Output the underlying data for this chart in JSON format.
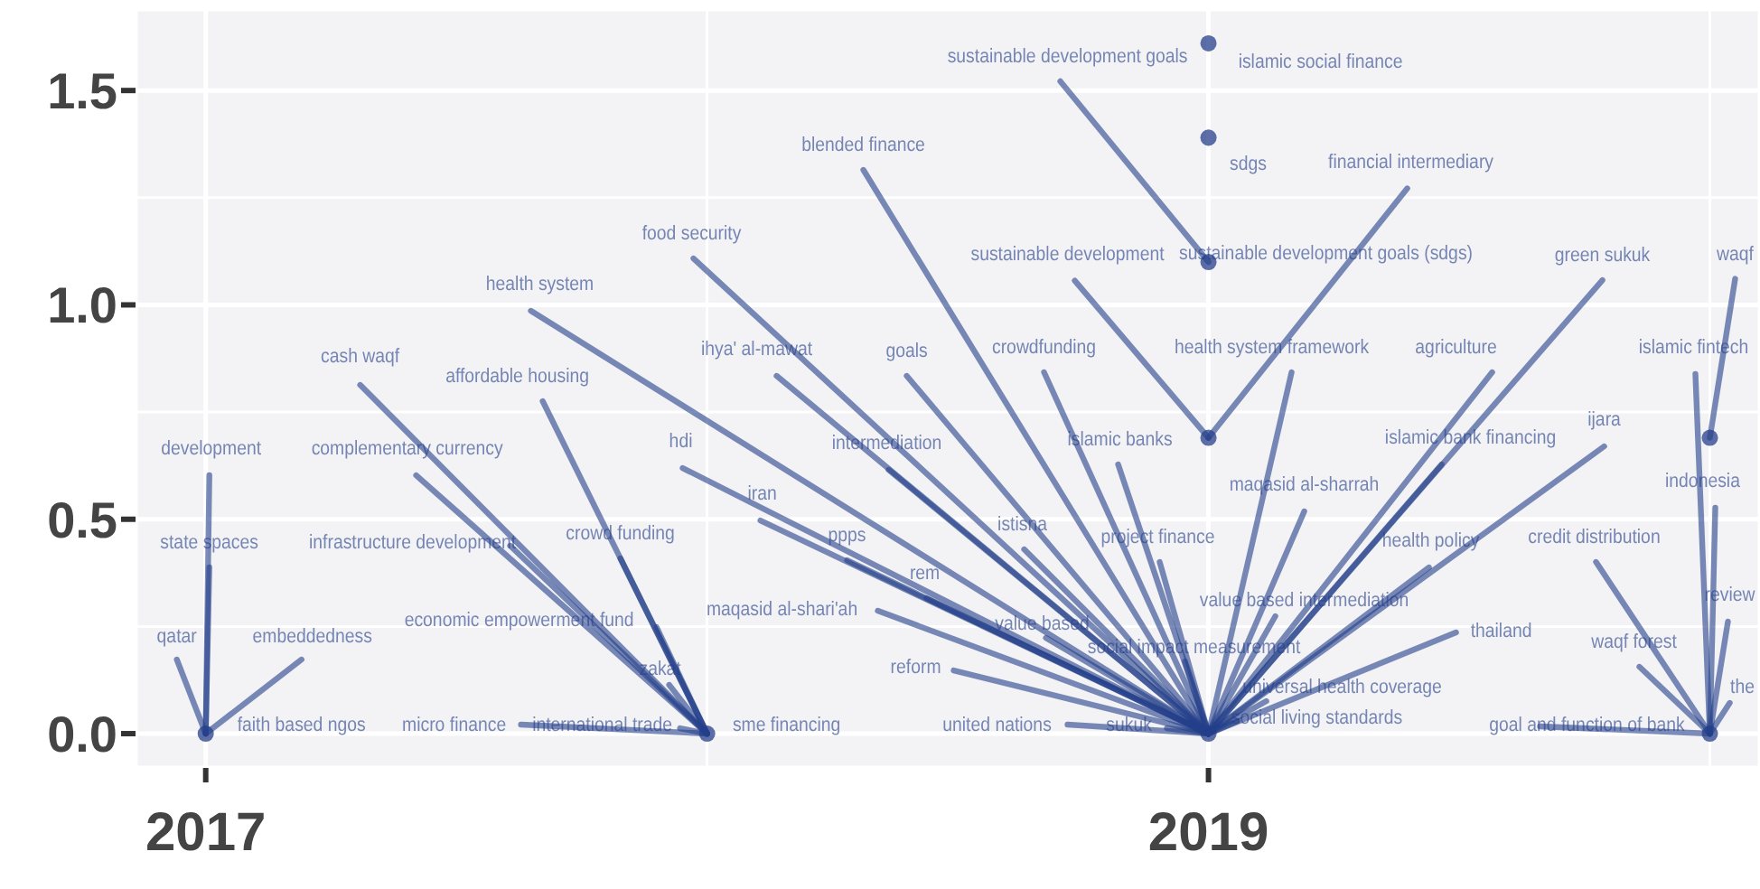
{
  "chart_data": {
    "type": "scatter",
    "xlim": [
      2016.86,
      2020.1
    ],
    "ylim": [
      -0.08,
      1.69
    ],
    "xticks": [
      2017,
      2019
    ],
    "yticks": [
      {
        "value": 0,
        "label": "0.0"
      },
      {
        "value": 0.5,
        "label": "0.5"
      },
      {
        "value": 1,
        "label": "1.0"
      },
      {
        "value": 1.5,
        "label": "1.5"
      }
    ],
    "grid": true,
    "marker": "circle",
    "series": [
      {
        "color": "#253f8a",
        "x": [
          2017,
          2018,
          2019,
          2019,
          2019,
          2019,
          2019,
          2020,
          2020
        ],
        "values": [
          0,
          0,
          0,
          1.61,
          1.39,
          1.1,
          0.69,
          0.69,
          0
        ]
      }
    ],
    "annotations": [
      {
        "text": "development",
        "x": 2017,
        "y": 0
      },
      {
        "text": "state spaces",
        "x": 2017,
        "y": 0
      },
      {
        "text": "qatar",
        "x": 2017,
        "y": 0
      },
      {
        "text": "embeddedness",
        "x": 2017,
        "y": 0
      },
      {
        "text": "faith based ngos",
        "x": 2017,
        "y": 0
      },
      {
        "text": "cash waqf",
        "x": 2018,
        "y": 0
      },
      {
        "text": "complementary currency",
        "x": 2018,
        "y": 0
      },
      {
        "text": "affordable housing",
        "x": 2018,
        "y": 0
      },
      {
        "text": "infrastructure development",
        "x": 2018,
        "y": 0
      },
      {
        "text": "crowd funding",
        "x": 2018,
        "y": 0
      },
      {
        "text": "economic empowerment fund",
        "x": 2018,
        "y": 0
      },
      {
        "text": "zakat",
        "x": 2018,
        "y": 0
      },
      {
        "text": "micro finance",
        "x": 2018,
        "y": 0
      },
      {
        "text": "international trade",
        "x": 2018,
        "y": 0
      },
      {
        "text": "sme financing",
        "x": 2018,
        "y": 0
      },
      {
        "text": "health system",
        "x": 2019,
        "y": 0
      },
      {
        "text": "food security",
        "x": 2019,
        "y": 0
      },
      {
        "text": "blended finance",
        "x": 2019,
        "y": 0
      },
      {
        "text": "ihya' al-mawat",
        "x": 2019,
        "y": 0
      },
      {
        "text": "goals",
        "x": 2019,
        "y": 0
      },
      {
        "text": "crowdfunding",
        "x": 2019,
        "y": 0
      },
      {
        "text": "hdi",
        "x": 2019,
        "y": 0
      },
      {
        "text": "intermediation",
        "x": 2019,
        "y": 0
      },
      {
        "text": "iran",
        "x": 2019,
        "y": 0
      },
      {
        "text": "ppps",
        "x": 2019,
        "y": 0
      },
      {
        "text": "istisna",
        "x": 2019,
        "y": 0
      },
      {
        "text": "rem",
        "x": 2019,
        "y": 0
      },
      {
        "text": "maqasid al-shari'ah",
        "x": 2019,
        "y": 0
      },
      {
        "text": "value based",
        "x": 2019,
        "y": 0
      },
      {
        "text": "reform",
        "x": 2019,
        "y": 0
      },
      {
        "text": "united nations",
        "x": 2019,
        "y": 0
      },
      {
        "text": "sukuk",
        "x": 2019,
        "y": 0
      },
      {
        "text": "islamic banks",
        "x": 2019,
        "y": 0
      },
      {
        "text": "project finance",
        "x": 2019,
        "y": 0
      },
      {
        "text": "social impact measurement",
        "x": 2019,
        "y": 0
      },
      {
        "text": "health system framework",
        "x": 2019,
        "y": 0
      },
      {
        "text": "maqasid al-sharrah",
        "x": 2019,
        "y": 0
      },
      {
        "text": "value based intermediation",
        "x": 2019,
        "y": 0
      },
      {
        "text": "health policy",
        "x": 2019,
        "y": 0
      },
      {
        "text": "islamic bank financing",
        "x": 2019,
        "y": 0
      },
      {
        "text": "agriculture",
        "x": 2019,
        "y": 0
      },
      {
        "text": "green sukuk",
        "x": 2019,
        "y": 0
      },
      {
        "text": "ijara",
        "x": 2019,
        "y": 0
      },
      {
        "text": "thailand",
        "x": 2019,
        "y": 0
      },
      {
        "text": "universal health coverage",
        "x": 2019,
        "y": 0
      },
      {
        "text": "social living standards",
        "x": 2019,
        "y": 0
      },
      {
        "text": "islamic social finance",
        "x": 2019,
        "y": 1.61
      },
      {
        "text": "sustainable development goals",
        "x": 2019,
        "y": 1.1
      },
      {
        "text": "sdgs",
        "x": 2019,
        "y": 1.39
      },
      {
        "text": "sustainable development goals (sdgs)",
        "x": 2019,
        "y": 1.1
      },
      {
        "text": "sustainable development",
        "x": 2019,
        "y": 0.69
      },
      {
        "text": "financial intermediary",
        "x": 2019,
        "y": 0.69
      },
      {
        "text": "waqf",
        "x": 2020,
        "y": 0.69
      },
      {
        "text": "islamic fintech",
        "x": 2020,
        "y": 0
      },
      {
        "text": "indonesia",
        "x": 2020,
        "y": 0
      },
      {
        "text": "review",
        "x": 2020,
        "y": 0
      },
      {
        "text": "the",
        "x": 2020,
        "y": 0
      },
      {
        "text": "credit distribution",
        "x": 2020,
        "y": 0
      },
      {
        "text": "waqf forest",
        "x": 2020,
        "y": 0
      },
      {
        "text": "goal and function of bank",
        "x": 2020,
        "y": 0
      }
    ]
  }
}
